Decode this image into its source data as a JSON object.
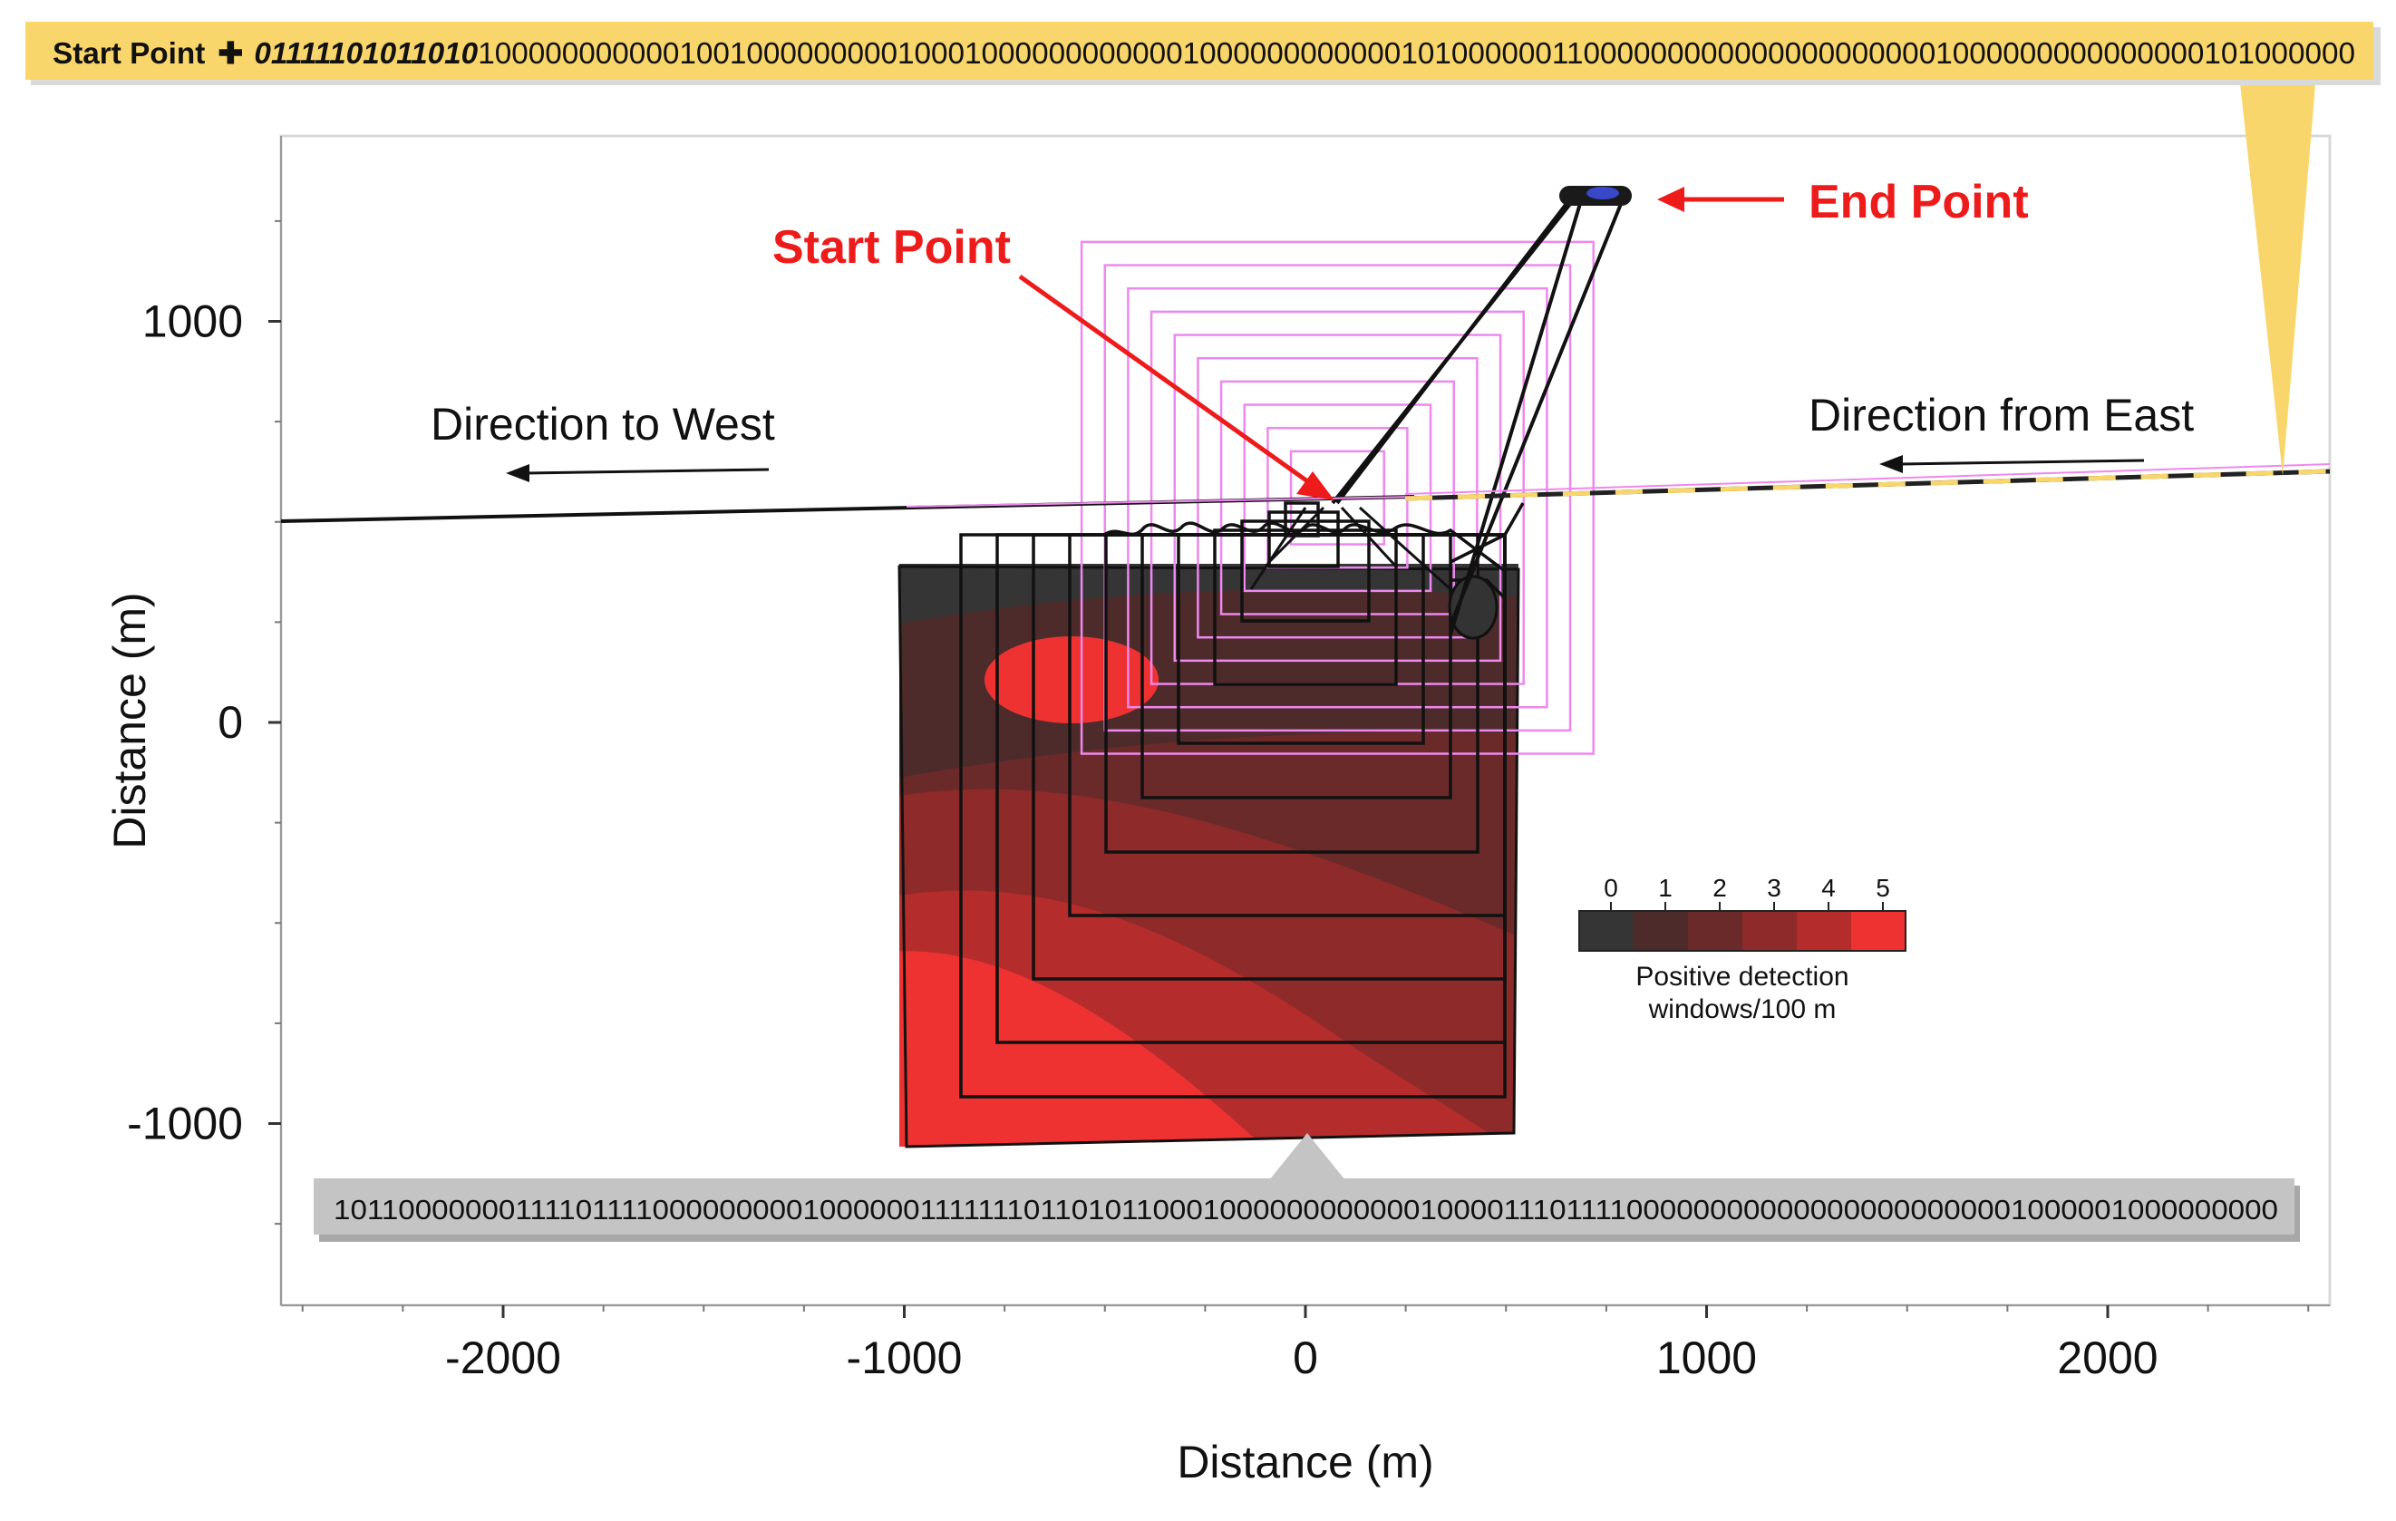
{
  "colors": {
    "banner_fill": "#f9d66b",
    "bottom_banner_fill": "#c4c4c4",
    "annotation_red": "#ee1b1b",
    "track": "#111111",
    "search_pattern": "#ee88ee",
    "heat_levels": [
      "#353535",
      "#4d2b2b",
      "#6b2a2a",
      "#8f2a2a",
      "#b52c2c",
      "#ee3232"
    ]
  },
  "top_banner": {
    "prefix": "Start Point",
    "bits_bold": "01111101011010",
    "bits_rest": "1000000000001001000000000100010000000000001000000000000101000000110000000000000000000001000000000000000101000000"
  },
  "bottom_banner": {
    "bits": "10110000000111101111000000000100000011111110110101100010000000000001000011101111000000000000000000000001000001000000000"
  },
  "annotations": {
    "start_point": "Start Point",
    "end_point": "End Point",
    "direction_west": "Direction to West",
    "direction_east": "Direction from East"
  },
  "chart_data": {
    "type": "heatmap",
    "title": "",
    "xlabel": "Distance (m)",
    "ylabel": "Distance (m)",
    "xlim": [
      -2550,
      2550
    ],
    "ylim": [
      -1450,
      1450
    ],
    "x_ticks": [
      -2000,
      -1000,
      0,
      1000,
      2000
    ],
    "y_ticks": [
      1000,
      0,
      -1000
    ],
    "x_tick_labels": [
      "-2000",
      "-1000",
      "0",
      "1000",
      "2000"
    ],
    "y_tick_labels": [
      "1000",
      "0",
      "-1000"
    ],
    "colorbar": {
      "label": "Positive detection windows/100 m",
      "ticks": [
        "0",
        "1",
        "2",
        "3",
        "4",
        "5"
      ],
      "placement": "right"
    },
    "grid": false,
    "ship_track": {
      "points": [
        [
          -2550,
          500
        ],
        [
          -1000,
          520
        ],
        [
          0,
          550
        ],
        [
          250,
          570
        ],
        [
          1000,
          580
        ],
        [
          2550,
          620
        ]
      ],
      "description": ""
    },
    "start_point": [
      80,
      560
    ],
    "end_point": [
      740,
      1310
    ],
    "search_squares_half_width_m": [
      80,
      120,
      160,
      200,
      240,
      280,
      320,
      360,
      400,
      440
    ],
    "search_square_centre": [
      80,
      560
    ]
  }
}
